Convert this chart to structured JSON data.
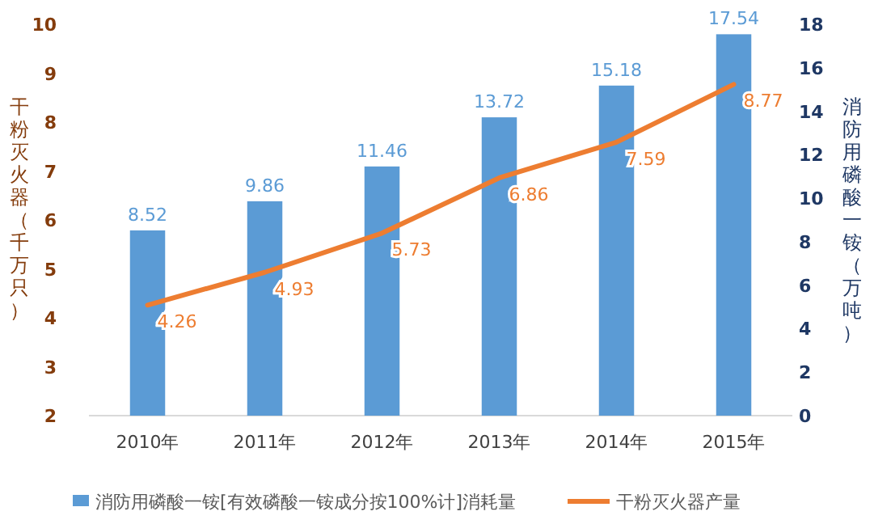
{
  "chart_data": {
    "type": "bar",
    "categories": [
      "2010年",
      "2011年",
      "2012年",
      "2013年",
      "2014年",
      "2015年"
    ],
    "series": [
      {
        "name": "消防用磷酸一铵[有效磷酸一铵成分按100%计]消耗量",
        "axis": "y2",
        "color": "#5b9bd5",
        "values": [
          8.52,
          9.86,
          11.46,
          13.72,
          15.18,
          17.54
        ]
      },
      {
        "name": "干粉灭火器产量",
        "type": "line",
        "axis": "y",
        "color": "#ed7d31",
        "values": [
          4.26,
          4.93,
          5.73,
          6.86,
          7.59,
          8.77
        ]
      }
    ],
    "ylabel": "干粉灭火器（千万只）",
    "y2label": "消防用磷酸一铵（万吨）",
    "ylim": [
      2,
      10
    ],
    "yticks": [
      2,
      3,
      4,
      5,
      6,
      7,
      8,
      9,
      10
    ],
    "y2lim": [
      0,
      18
    ],
    "y2ticks": [
      0,
      2,
      4,
      6,
      8,
      10,
      12,
      14,
      16,
      18
    ],
    "data_labels": true,
    "legend": "bottom",
    "grid": false
  }
}
